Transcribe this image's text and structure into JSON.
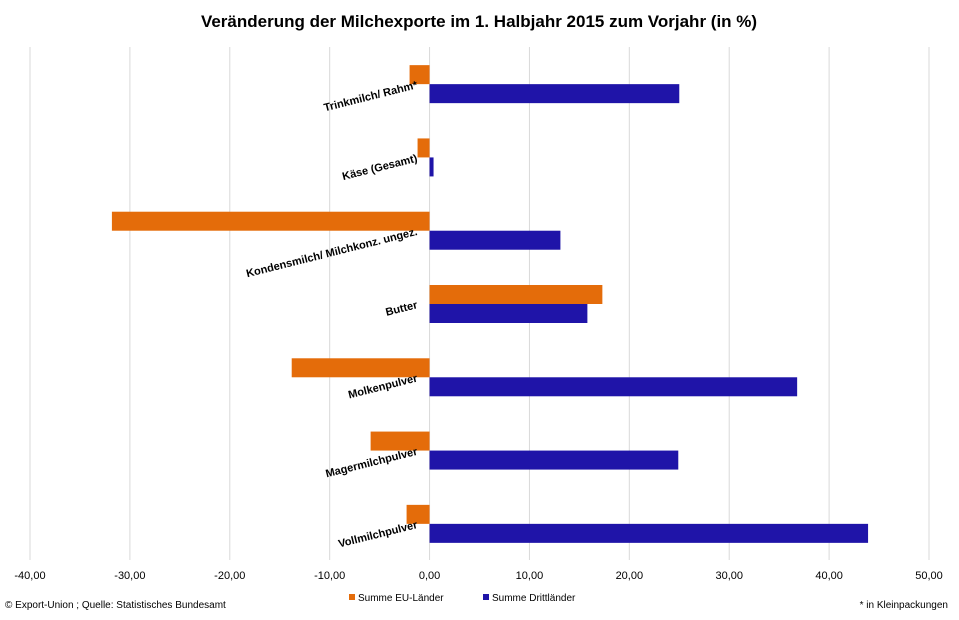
{
  "chart_data": {
    "type": "bar",
    "orientation": "horizontal",
    "title": "Veränderung der Milchexporte im 1. Halbjahr 2015 zum Vorjahr (in %)",
    "categories": [
      "Trinkmilch/ Rahm*",
      "Käse (Gesamt)",
      "Kondensmilch/ Milchkonz. ungez.",
      "Butter",
      "Molkenpulver",
      "Magermilchpulver",
      "Vollmilchpulver"
    ],
    "series": [
      {
        "name": "Summe EU-Länder",
        "color": "#E46C0A",
        "values": [
          -2.0,
          -1.2,
          -31.8,
          17.3,
          -13.8,
          -5.9,
          -2.3
        ]
      },
      {
        "name": "Summe Drittländer",
        "color": "#1F14A8",
        "values": [
          25.0,
          0.4,
          13.1,
          15.8,
          36.8,
          24.9,
          43.9
        ]
      }
    ],
    "xlim": [
      -40,
      50
    ],
    "xticks": [
      "-40,00",
      "-30,00",
      "-20,00",
      "-10,00",
      "0,00",
      "10,00",
      "20,00",
      "30,00",
      "40,00",
      "50,00"
    ],
    "grid": true,
    "legend": "bottom-center"
  },
  "footer": {
    "source": "© Export-Union ; Quelle: Statistisches Bundesamt",
    "note": "* in Kleinpackungen"
  }
}
